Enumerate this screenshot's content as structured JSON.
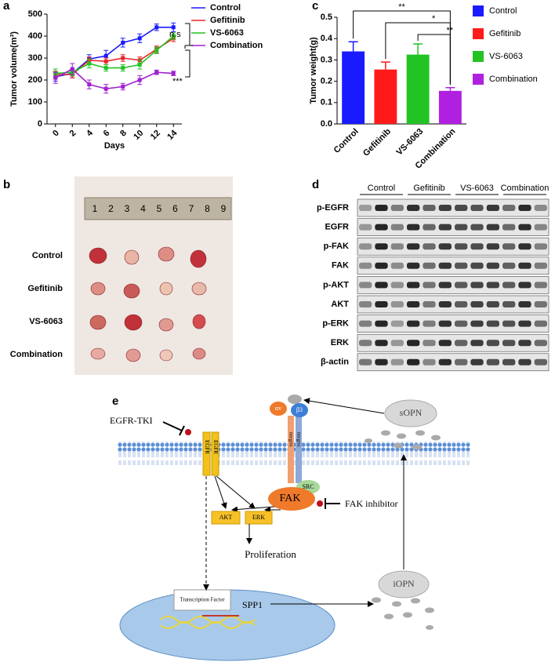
{
  "panel_labels": [
    "a",
    "b",
    "c",
    "d",
    "e"
  ],
  "chart_data": [
    {
      "type": "line",
      "x_label": "Days",
      "y_label": "Tumor volume(m³)",
      "x": [
        0,
        2,
        4,
        6,
        8,
        10,
        12,
        14
      ],
      "xlim": [
        -1,
        15
      ],
      "xticks": [
        0,
        2,
        4,
        6,
        8,
        10,
        12,
        14
      ],
      "ylim": [
        0,
        500
      ],
      "yticks": [
        0,
        100,
        200,
        300,
        400,
        500
      ],
      "series": [
        {
          "name": "Control",
          "color": "#1a1aff",
          "values": [
            215,
            230,
            295,
            310,
            370,
            390,
            440,
            440
          ],
          "errors": [
            20,
            20,
            20,
            25,
            20,
            20,
            15,
            20
          ]
        },
        {
          "name": "Gefitinib",
          "color": "#e8262a",
          "values": [
            225,
            225,
            290,
            285,
            300,
            290,
            340,
            390
          ],
          "errors": [
            15,
            15,
            15,
            15,
            15,
            15,
            15,
            15
          ]
        },
        {
          "name": "VS-6063",
          "color": "#22c322",
          "values": [
            230,
            235,
            275,
            255,
            255,
            270,
            335,
            400
          ],
          "errors": [
            20,
            15,
            20,
            15,
            15,
            20,
            15,
            15
          ]
        },
        {
          "name": "Combination",
          "color": "#a020d0",
          "values": [
            210,
            250,
            180,
            160,
            170,
            200,
            235,
            230
          ],
          "errors": [
            25,
            25,
            20,
            20,
            15,
            20,
            10,
            10
          ]
        }
      ],
      "annotations": [
        "n.s",
        "***"
      ]
    },
    {
      "type": "bar",
      "y_label": "Tumor weight(g)",
      "categories": [
        "Control",
        "Gefitinib",
        "VS-6063",
        "Combination"
      ],
      "values": [
        0.34,
        0.255,
        0.325,
        0.155
      ],
      "errors": [
        0.045,
        0.035,
        0.05,
        0.015
      ],
      "colors": [
        "#1a1aff",
        "#ff1a1a",
        "#22c322",
        "#b020e0"
      ],
      "ylim": [
        0,
        0.5
      ],
      "yticks": [
        {
          "value": 0,
          "label": "0.0"
        },
        0.1,
        0.2,
        0.3,
        0.4,
        0.5
      ],
      "annotations": [
        "**",
        "*",
        "**"
      ]
    }
  ],
  "photo": {
    "ruler": [
      1,
      2,
      3,
      4,
      5,
      6,
      7,
      8,
      9
    ],
    "rows": [
      "Control",
      "Gefitinib",
      "VS-6063",
      "Combination"
    ]
  },
  "blot": {
    "groups": [
      "Control",
      "Gefitinib",
      "VS-6063",
      "Combination"
    ],
    "proteins": [
      "p-EGFR",
      "EGFR",
      "p-FAK",
      "FAK",
      "p-AKT",
      "AKT",
      "p-ERK",
      "ERK",
      "β-actin"
    ]
  },
  "diagram": {
    "egfr_tki": "EGFR-TKI",
    "egfr": "EGFR",
    "alpha_v": "αv",
    "beta3": "β3",
    "integrin": "integrin",
    "src": "SRC",
    "fak": "FAK",
    "fak_inhibitor": "FAK inhibitor",
    "akt": "AKT",
    "erk": "ERK",
    "proliferation": "Proliferation",
    "transcription_factor": "Transcription Factor",
    "spp1": "SPP1",
    "sopn": "sOPN",
    "iopn": "iOPN"
  }
}
